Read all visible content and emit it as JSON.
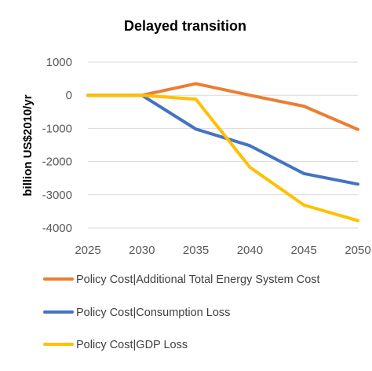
{
  "chart_data": {
    "type": "line",
    "title": "Delayed transition",
    "xlabel": "",
    "ylabel": "billion US$2010/yr",
    "x": [
      2025,
      2030,
      2035,
      2040,
      2045,
      2050
    ],
    "ylim": [
      -4000,
      1000
    ],
    "yticks": [
      1000,
      0,
      -1000,
      -2000,
      -3000,
      -4000
    ],
    "grid": true,
    "legend_position": "bottom",
    "series": [
      {
        "name": "Policy Cost|Additional Total Energy System Cost",
        "color": "#ED7D31",
        "values": [
          0,
          0,
          350,
          0,
          -330,
          -1030
        ]
      },
      {
        "name": "Policy Cost|Consumption Loss",
        "color": "#4472C4",
        "values": [
          0,
          0,
          -1020,
          -1520,
          -2360,
          -2680
        ]
      },
      {
        "name": "Policy Cost|GDP Loss",
        "color": "#FFC000",
        "values": [
          0,
          0,
          -120,
          -2170,
          -3310,
          -3780
        ]
      }
    ]
  }
}
